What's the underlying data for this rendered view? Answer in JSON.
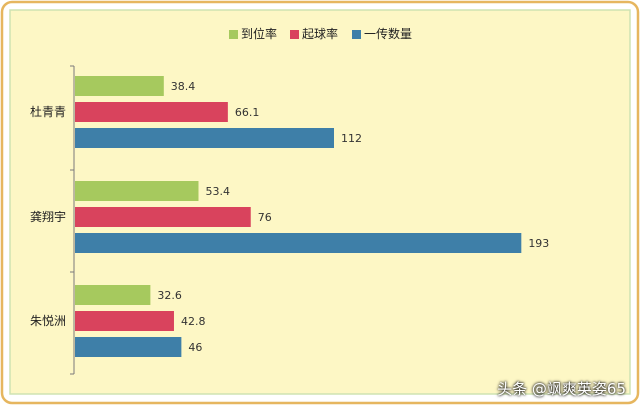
{
  "chart_data": {
    "type": "bar",
    "orientation": "horizontal",
    "categories": [
      "杜青青",
      "龚翔宇",
      "朱悦洲"
    ],
    "series": [
      {
        "name": "到位率",
        "values": [
          38.4,
          53.4,
          32.6
        ],
        "color": "#a6c95e"
      },
      {
        "name": "起球率",
        "values": [
          66.1,
          76,
          42.8
        ],
        "color": "#d9435d"
      },
      {
        "name": "一传数量",
        "values": [
          112,
          193,
          46
        ],
        "color": "#3e7fa8"
      }
    ],
    "value_labels": [
      [
        "38.4",
        "53.4",
        "32.6"
      ],
      [
        "66.1",
        "76",
        "42.8"
      ],
      [
        "112",
        "193",
        "46"
      ]
    ],
    "xlim": [
      0,
      240
    ],
    "legend_position": "top",
    "grid": false
  },
  "colors": {
    "panel_bg": "#fdf7c5",
    "panel_border": "#cfe3b2",
    "outer_border": "#e6b65f"
  },
  "watermark": "头条 @飒爽英姿65"
}
